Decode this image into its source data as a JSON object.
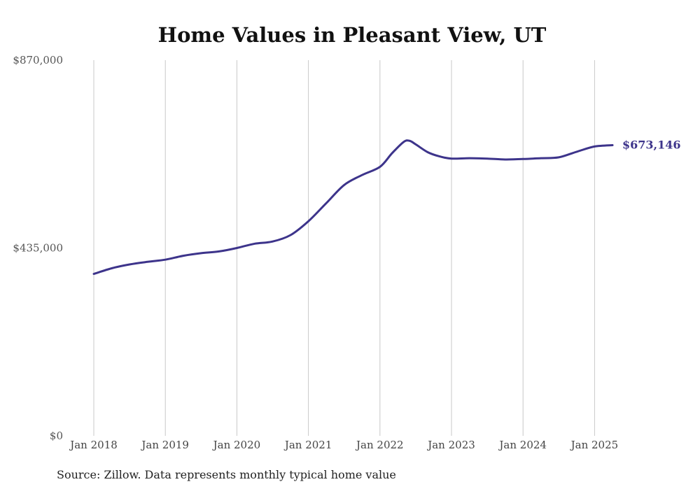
{
  "chart_data": {
    "type": "line",
    "title": "Home Values in Pleasant View, UT",
    "xlabel": "",
    "ylabel": "",
    "ylim": [
      0,
      870000
    ],
    "yticks": [
      {
        "value": 0,
        "label": "$0"
      },
      {
        "value": 435000,
        "label": "$435,000"
      },
      {
        "value": 870000,
        "label": "$870,000"
      }
    ],
    "xticks": [
      {
        "value": "2018-01",
        "label": "Jan 2018"
      },
      {
        "value": "2019-01",
        "label": "Jan 2019"
      },
      {
        "value": "2020-01",
        "label": "Jan 2020"
      },
      {
        "value": "2021-01",
        "label": "Jan 2021"
      },
      {
        "value": "2022-01",
        "label": "Jan 2022"
      },
      {
        "value": "2023-01",
        "label": "Jan 2023"
      },
      {
        "value": "2024-01",
        "label": "Jan 2024"
      },
      {
        "value": "2025-01",
        "label": "Jan 2025"
      }
    ],
    "grid": {
      "vertical": true,
      "horizontal": false
    },
    "line_color": "#3d348b",
    "series": [
      {
        "x": [
          "2018-01",
          "2018-04",
          "2018-07",
          "2018-10",
          "2019-01",
          "2019-04",
          "2019-07",
          "2019-10",
          "2020-01",
          "2020-04",
          "2020-07",
          "2020-10",
          "2021-01",
          "2021-04",
          "2021-07",
          "2021-10",
          "2022-01",
          "2022-03",
          "2022-05",
          "2022-06",
          "2022-07",
          "2022-09",
          "2022-11",
          "2023-01",
          "2023-04",
          "2023-07",
          "2023-10",
          "2024-01",
          "2024-04",
          "2024-07",
          "2024-10",
          "2025-01",
          "2025-04"
        ],
        "y": [
          375000,
          388000,
          397000,
          403000,
          408000,
          417000,
          423000,
          427000,
          435000,
          445000,
          450000,
          465000,
          497000,
          539000,
          581000,
          604000,
          623000,
          654000,
          681000,
          683000,
          675000,
          657000,
          647000,
          642000,
          643000,
          642000,
          640000,
          641000,
          643000,
          645000,
          658000,
          670000,
          673146
        ]
      }
    ],
    "end_label": "$673,146",
    "source": "Source: Zillow. Data represents monthly typical home value"
  }
}
